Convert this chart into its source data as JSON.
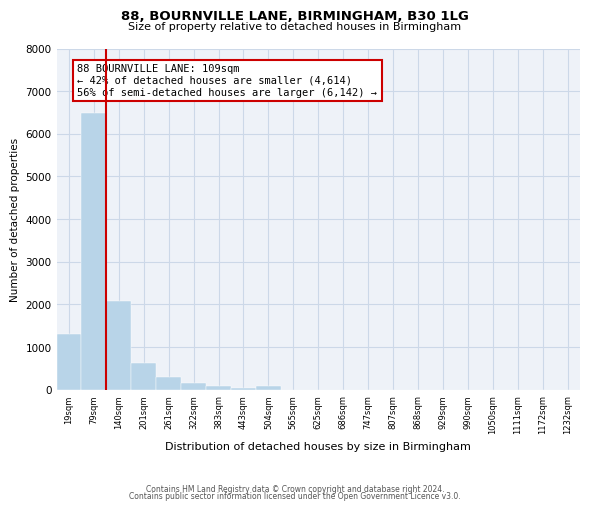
{
  "title": "88, BOURNVILLE LANE, BIRMINGHAM, B30 1LG",
  "subtitle": "Size of property relative to detached houses in Birmingham",
  "bar_labels": [
    "19sqm",
    "79sqm",
    "140sqm",
    "201sqm",
    "261sqm",
    "322sqm",
    "383sqm",
    "443sqm",
    "504sqm",
    "565sqm",
    "625sqm",
    "686sqm",
    "747sqm",
    "807sqm",
    "868sqm",
    "929sqm",
    "990sqm",
    "1050sqm",
    "1111sqm",
    "1172sqm",
    "1232sqm"
  ],
  "bar_values": [
    1300,
    6480,
    2080,
    620,
    300,
    150,
    80,
    50,
    100,
    0,
    0,
    0,
    0,
    0,
    0,
    0,
    0,
    0,
    0,
    0,
    0
  ],
  "bar_color": "#b8d4e8",
  "vline_color": "#cc0000",
  "ylabel": "Number of detached properties",
  "xlabel": "Distribution of detached houses by size in Birmingham",
  "ylim": [
    0,
    8000
  ],
  "yticks": [
    0,
    1000,
    2000,
    3000,
    4000,
    5000,
    6000,
    7000,
    8000
  ],
  "annotation_title": "88 BOURNVILLE LANE: 109sqm",
  "annotation_line1": "← 42% of detached houses are smaller (4,614)",
  "annotation_line2": "56% of semi-detached houses are larger (6,142) →",
  "annotation_box_color": "#cc0000",
  "grid_color": "#ccd8e8",
  "background_color": "#eef2f8",
  "footer1": "Contains HM Land Registry data © Crown copyright and database right 2024.",
  "footer2": "Contains public sector information licensed under the Open Government Licence v3.0."
}
